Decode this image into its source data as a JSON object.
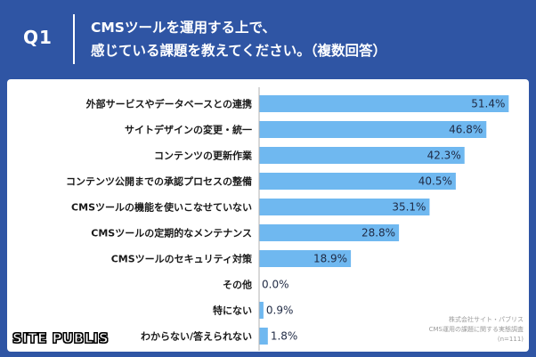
{
  "header": {
    "question_number": "Q1",
    "title_line1": "CMSツールを運用する上で、",
    "title_line2": "感じている課題を教えてください。（複数回答）"
  },
  "chart_data": {
    "type": "bar",
    "orientation": "horizontal",
    "categories": [
      "外部サービスやデータベースとの連携",
      "サイトデザインの変更・統一",
      "コンテンツの更新作業",
      "コンテンツ公開までの承認プロセスの整備",
      "CMSツールの機能を使いこなせていない",
      "CMSツールの定期的なメンテナンス",
      "CMSツールのセキュリティ対策",
      "その他",
      "特にない",
      "わからない/答えられない"
    ],
    "values": [
      51.4,
      46.8,
      42.3,
      40.5,
      35.1,
      28.8,
      18.9,
      0.0,
      0.9,
      1.8
    ],
    "value_labels": [
      "51.4%",
      "46.8%",
      "42.3%",
      "40.5%",
      "35.1%",
      "28.8%",
      "18.9%",
      "0.0%",
      "0.9%",
      "1.8%"
    ],
    "xlim": [
      0,
      55
    ],
    "bar_color": "#6fb8f0"
  },
  "footer": {
    "logo": "SITE PUBLIS",
    "logo_mark": "®",
    "source_line1": "株式会社サイト・パブリス",
    "source_line2": "CMS運用の課題に関する実態調査",
    "source_line3": "(n=111)"
  }
}
